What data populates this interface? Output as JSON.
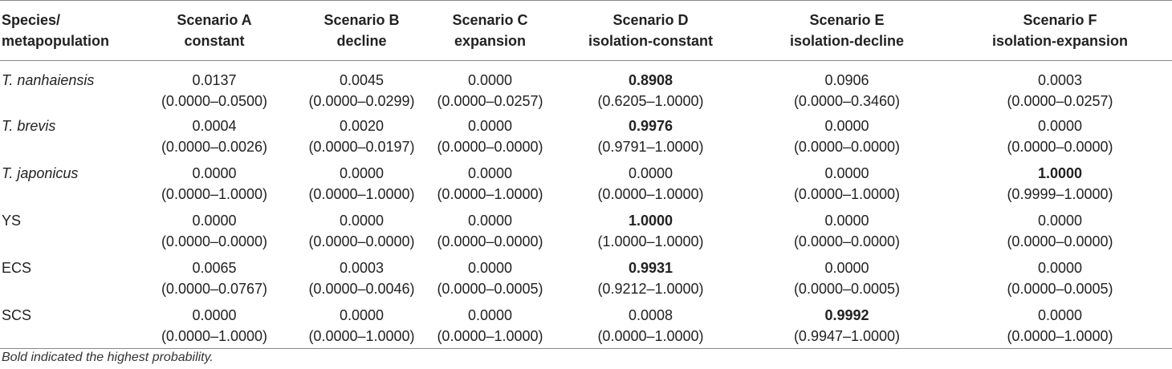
{
  "header": {
    "col0": [
      "Species/",
      "metapopulation"
    ],
    "scenarios": [
      {
        "line1": "Scenario A",
        "line2": "constant"
      },
      {
        "line1": "Scenario B",
        "line2": "decline"
      },
      {
        "line1": "Scenario C",
        "line2": "expansion"
      },
      {
        "line1": "Scenario D",
        "line2": "isolation-constant"
      },
      {
        "line1": "Scenario E",
        "line2": "isolation-decline"
      },
      {
        "line1": "Scenario F",
        "line2": "isolation-expansion"
      }
    ]
  },
  "rows": [
    {
      "name": "T. nanhaiensis",
      "italic": true,
      "cells": [
        {
          "v": "0.0137",
          "ci": "(0.0000–0.0500)",
          "bold": false
        },
        {
          "v": "0.0045",
          "ci": "(0.0000–0.0299)",
          "bold": false
        },
        {
          "v": "0.0000",
          "ci": "(0.0000–0.0257)",
          "bold": false
        },
        {
          "v": "0.8908",
          "ci": "(0.6205–1.0000)",
          "bold": true
        },
        {
          "v": "0.0906",
          "ci": "(0.0000–0.3460)",
          "bold": false
        },
        {
          "v": "0.0003",
          "ci": "(0.0000–0.0257)",
          "bold": false
        }
      ]
    },
    {
      "name": "T. brevis",
      "italic": true,
      "cells": [
        {
          "v": "0.0004",
          "ci": "(0.0000–0.0026)",
          "bold": false
        },
        {
          "v": "0.0020",
          "ci": "(0.0000–0.0197)",
          "bold": false
        },
        {
          "v": "0.0000",
          "ci": "(0.0000–0.0000)",
          "bold": false
        },
        {
          "v": "0.9976",
          "ci": "(0.9791–1.0000)",
          "bold": true
        },
        {
          "v": "0.0000",
          "ci": "(0.0000–0.0000)",
          "bold": false
        },
        {
          "v": "0.0000",
          "ci": "(0.0000–0.0000)",
          "bold": false
        }
      ]
    },
    {
      "name": "T. japonicus",
      "italic": true,
      "cells": [
        {
          "v": "0.0000",
          "ci": "(0.0000–1.0000)",
          "bold": false
        },
        {
          "v": "0.0000",
          "ci": "(0.0000–1.0000)",
          "bold": false
        },
        {
          "v": "0.0000",
          "ci": "(0.0000–1.0000)",
          "bold": false
        },
        {
          "v": "0.0000",
          "ci": "(0.0000–1.0000)",
          "bold": false
        },
        {
          "v": "0.0000",
          "ci": "(0.0000–1.0000)",
          "bold": false
        },
        {
          "v": "1.0000",
          "ci": "(0.9999–1.0000)",
          "bold": true
        }
      ]
    },
    {
      "name": "YS",
      "italic": false,
      "cells": [
        {
          "v": "0.0000",
          "ci": "(0.0000–0.0000)",
          "bold": false
        },
        {
          "v": "0.0000",
          "ci": "(0.0000–0.0000)",
          "bold": false
        },
        {
          "v": "0.0000",
          "ci": "(0.0000–0.0000)",
          "bold": false
        },
        {
          "v": "1.0000",
          "ci": "(1.0000–1.0000)",
          "bold": true
        },
        {
          "v": "0.0000",
          "ci": "(0.0000–0.0000)",
          "bold": false
        },
        {
          "v": "0.0000",
          "ci": "(0.0000–0.0000)",
          "bold": false
        }
      ]
    },
    {
      "name": "ECS",
      "italic": false,
      "cells": [
        {
          "v": "0.0065",
          "ci": "(0.0000–0.0767)",
          "bold": false
        },
        {
          "v": "0.0003",
          "ci": "(0.0000–0.0046)",
          "bold": false
        },
        {
          "v": "0.0000",
          "ci": "(0.0000–0.0005)",
          "bold": false
        },
        {
          "v": "0.9931",
          "ci": "(0.9212–1.0000)",
          "bold": true
        },
        {
          "v": "0.0000",
          "ci": "(0.0000–0.0005)",
          "bold": false
        },
        {
          "v": "0.0000",
          "ci": "(0.0000–0.0005)",
          "bold": false
        }
      ]
    },
    {
      "name": "SCS",
      "italic": false,
      "cells": [
        {
          "v": "0.0000",
          "ci": "(0.0000–1.0000)",
          "bold": false
        },
        {
          "v": "0.0000",
          "ci": "(0.0000–1.0000)",
          "bold": false
        },
        {
          "v": "0.0000",
          "ci": "(0.0000–1.0000)",
          "bold": false
        },
        {
          "v": "0.0008",
          "ci": "(0.0000–1.0000)",
          "bold": false
        },
        {
          "v": "0.9992",
          "ci": "(0.9947–1.0000)",
          "bold": true
        },
        {
          "v": "0.0000",
          "ci": "(0.0000–1.0000)",
          "bold": false
        }
      ]
    }
  ],
  "footnote": "Bold indicated the highest probability."
}
